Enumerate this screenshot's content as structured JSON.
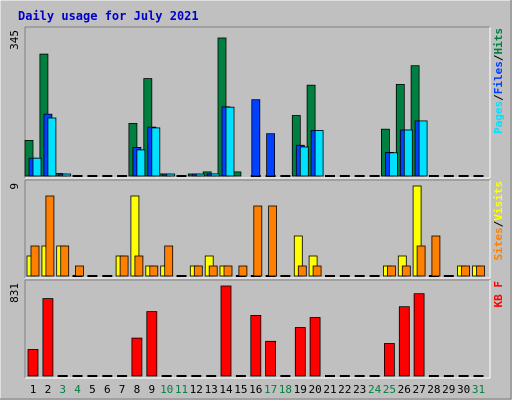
{
  "colors": {
    "frame": "#c0c0c0",
    "plot_bg": "#c0c0c0",
    "title": "#0000cc",
    "hits": "#008040",
    "files": "#0040ff",
    "pages": "#00e0ff",
    "visits": "#ffff00",
    "sites": "#ff8000",
    "kbytes": "#ff0000",
    "weekend_day": "#008040",
    "weekday": "#000000"
  },
  "chart_data": {
    "type": "bar",
    "title": "Daily usage for July 2021",
    "categories": [
      "1",
      "2",
      "3",
      "4",
      "5",
      "6",
      "7",
      "8",
      "9",
      "10",
      "11",
      "12",
      "13",
      "14",
      "15",
      "16",
      "17",
      "18",
      "19",
      "20",
      "21",
      "22",
      "23",
      "24",
      "25",
      "26",
      "27",
      "28",
      "29",
      "30",
      "31"
    ],
    "weekend_days": [
      "3",
      "4",
      "10",
      "11",
      "17",
      "18",
      "24",
      "25",
      "31"
    ],
    "panels": [
      {
        "id": "hits_files_pages",
        "ymax_label": "345",
        "ylim": [
          0,
          345
        ],
        "legend": [
          {
            "label": "Hits",
            "color_key": "hits"
          },
          {
            "label": "Files",
            "color_key": "files"
          },
          {
            "label": "Pages",
            "color_key": "pages"
          }
        ],
        "series": [
          {
            "name": "Hits",
            "color_key": "hits",
            "values": [
              86,
              294,
              6,
              0,
              0,
              0,
              0,
              127,
              235,
              5,
              0,
              3,
              10,
              333,
              10,
              0,
              0,
              0,
              146,
              219,
              0,
              0,
              0,
              0,
              113,
              221,
              266,
              0,
              0,
              0,
              0
            ]
          },
          {
            "name": "Files",
            "color_key": "files",
            "values": [
              43,
              149,
              3,
              0,
              0,
              0,
              0,
              69,
              118,
              2,
              0,
              1,
              5,
              167,
              0,
              184,
              102,
              0,
              74,
              110,
              0,
              0,
              0,
              0,
              57,
              111,
              133,
              0,
              0,
              0,
              0
            ]
          },
          {
            "name": "Pages",
            "color_key": "pages",
            "values": [
              43,
              140,
              3,
              0,
              0,
              0,
              0,
              63,
              116,
              2,
              0,
              1,
              5,
              166,
              0,
              0,
              0,
              0,
              70,
              110,
              0,
              0,
              0,
              0,
              56,
              111,
              133,
              0,
              0,
              0,
              0
            ]
          }
        ]
      },
      {
        "id": "visits_sites",
        "ymax_label": "9",
        "ylim": [
          0,
          9
        ],
        "legend": [
          {
            "label": "Visits",
            "color_key": "visits"
          },
          {
            "label": "Sites",
            "color_key": "sites"
          }
        ],
        "series": [
          {
            "name": "Visits",
            "color_key": "visits",
            "values": [
              2,
              3,
              3,
              0,
              0,
              0,
              2,
              8,
              1,
              1,
              0,
              1,
              2,
              1,
              0,
              0,
              0,
              0,
              4,
              2,
              0,
              0,
              0,
              0,
              1,
              2,
              9,
              0,
              0,
              1,
              1
            ]
          },
          {
            "name": "Sites",
            "color_key": "sites",
            "values": [
              3,
              8,
              3,
              1,
              0,
              0,
              2,
              2,
              1,
              3,
              0,
              1,
              1,
              1,
              1,
              7,
              7,
              0,
              1,
              1,
              0,
              0,
              0,
              0,
              1,
              1,
              3,
              4,
              0,
              1,
              1
            ]
          }
        ]
      },
      {
        "id": "kbytes",
        "ymax_label": "831",
        "ylim": [
          0,
          831
        ],
        "legend": [
          {
            "label": "KB F",
            "color_key": "kbytes"
          }
        ],
        "series": [
          {
            "name": "KB F",
            "color_key": "kbytes",
            "values": [
              245,
              715,
              0,
              0,
              0,
              0,
              0,
              350,
              595,
              0,
              0,
              0,
              0,
              831,
              0,
              560,
              320,
              0,
              448,
              540,
              0,
              0,
              0,
              0,
              300,
              640,
              760,
              0,
              0,
              0,
              0
            ]
          }
        ]
      }
    ]
  }
}
